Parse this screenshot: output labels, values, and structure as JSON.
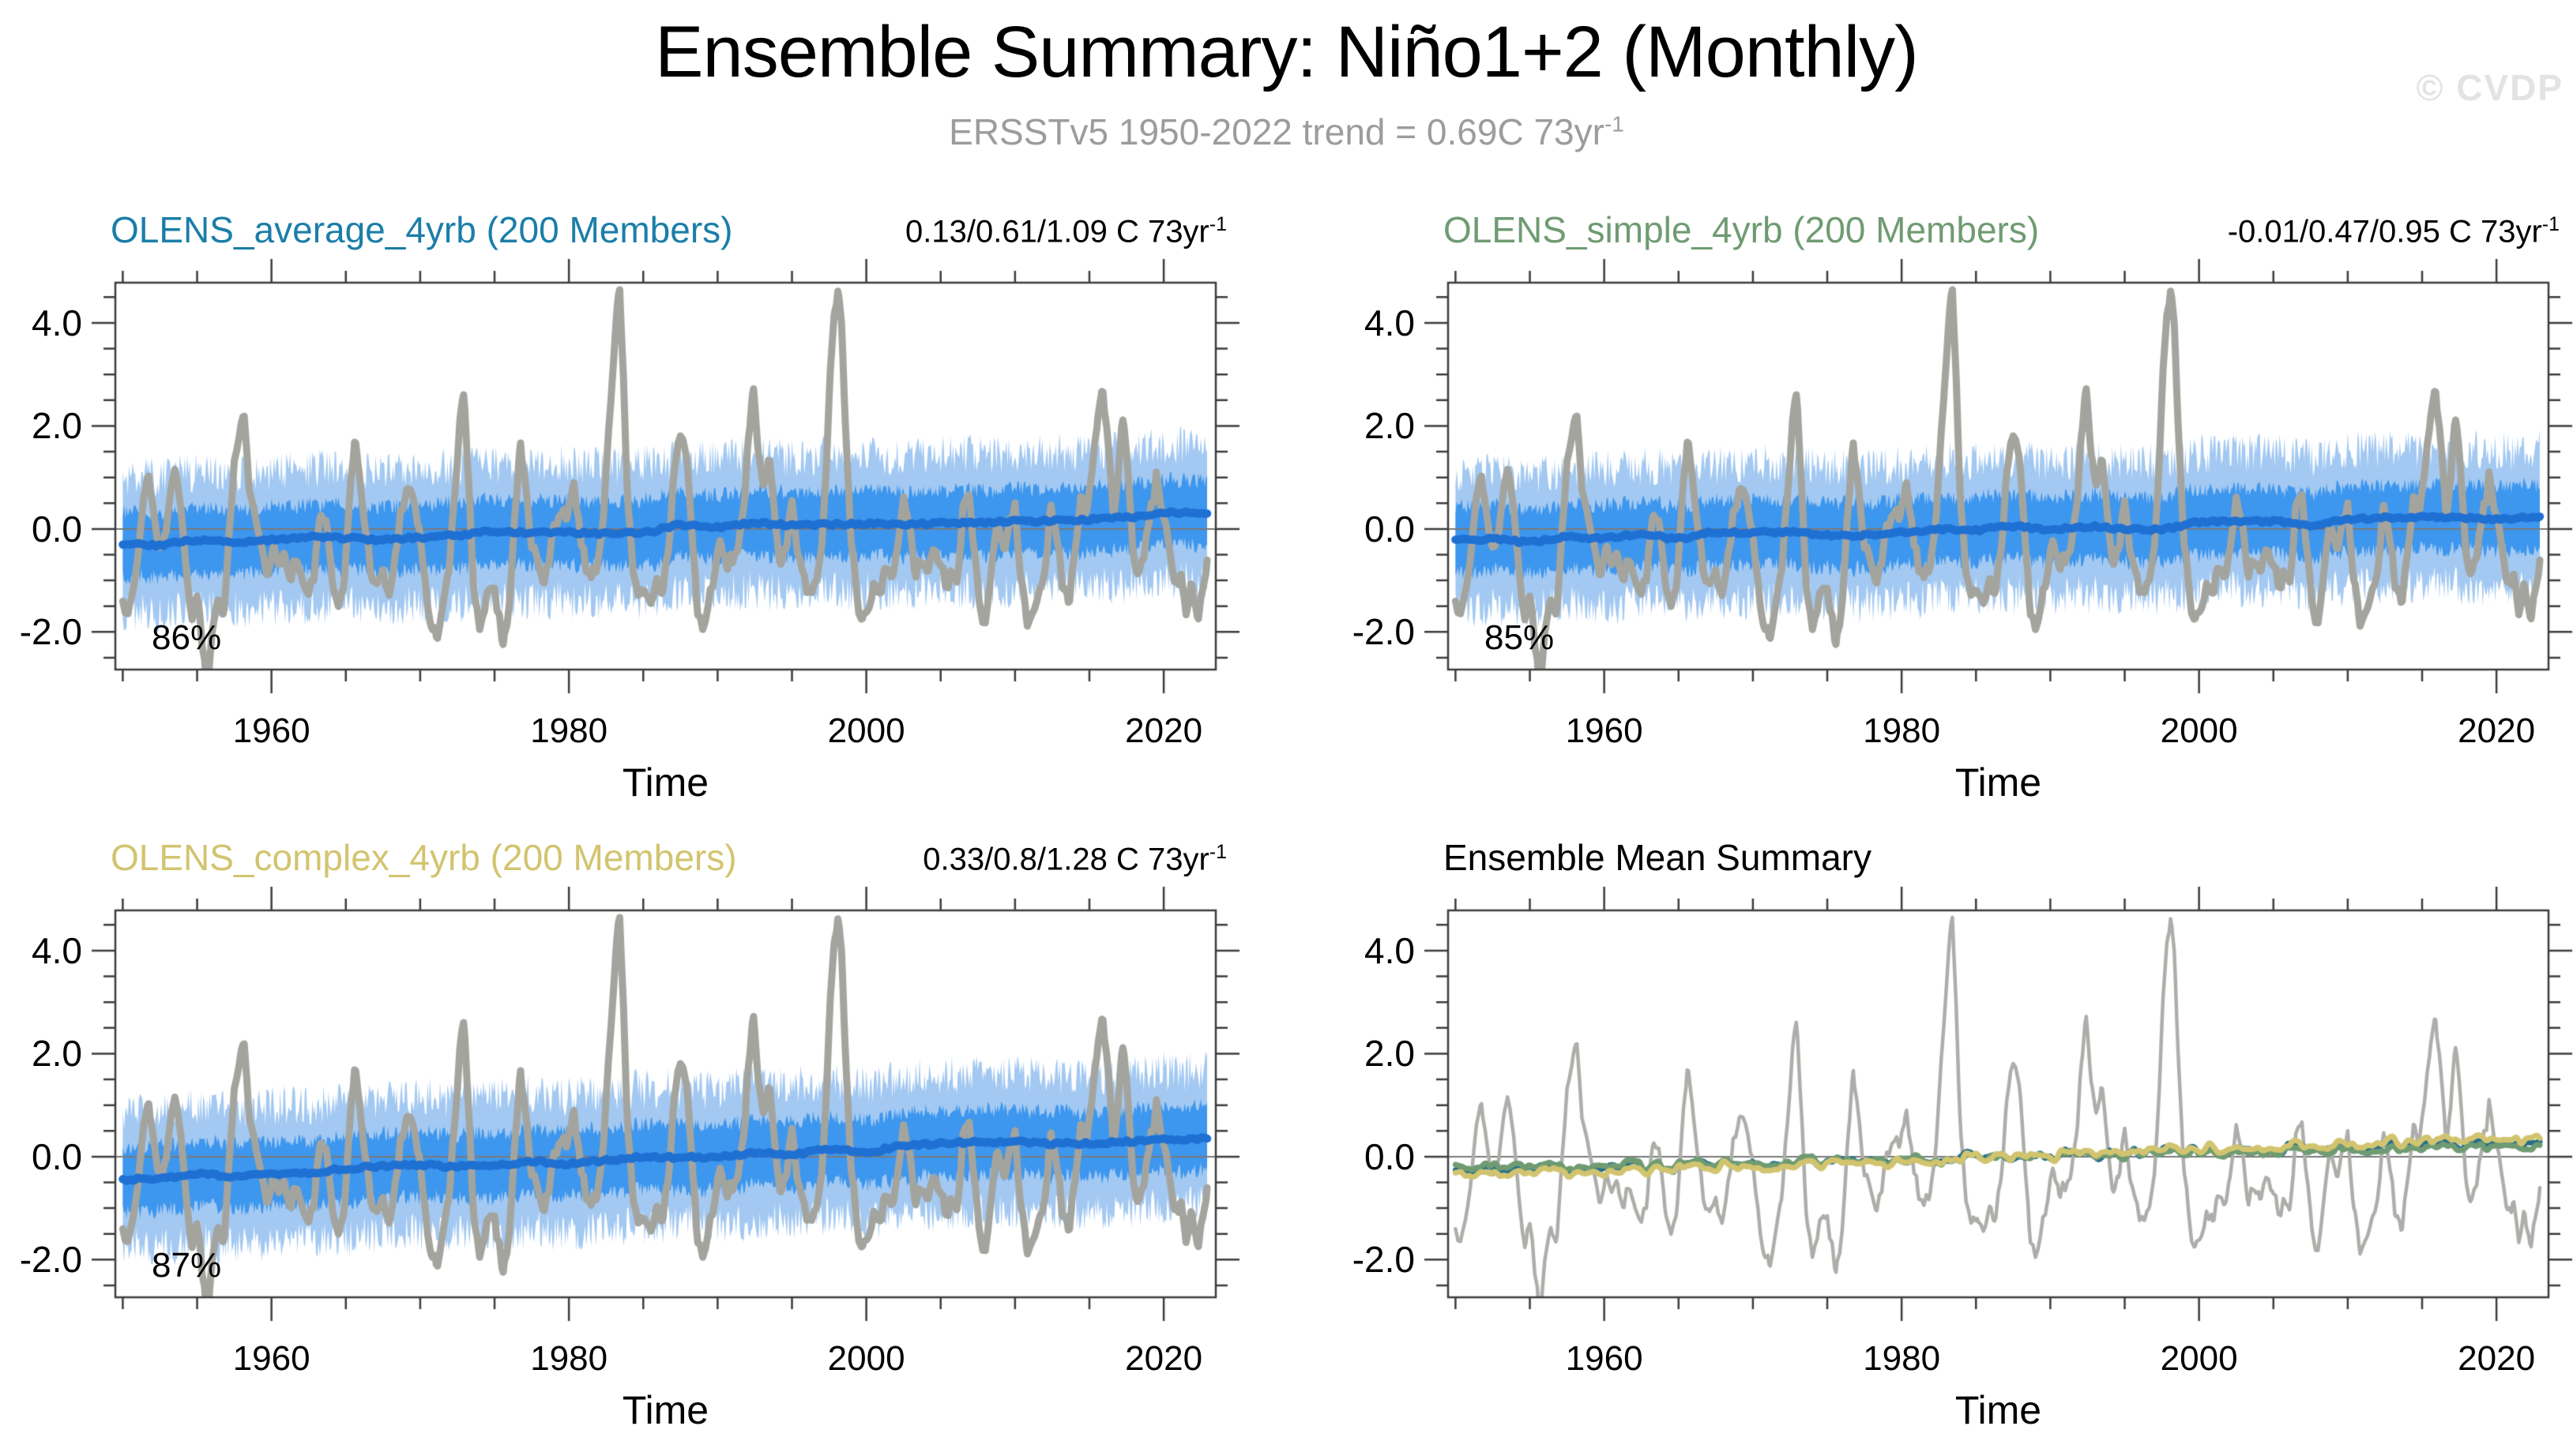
{
  "header": {
    "title": "Ensemble Summary: Niño1+2 (Monthly)",
    "subtitle": "ERSSTv5 1950-2022 trend = 0.69C 73yr",
    "subtitle_sup": "-1",
    "watermark": "© CVDP"
  },
  "chart_data": {
    "type": "line",
    "xlabel": "Time",
    "x_range": [
      1949.5,
      2023.5
    ],
    "x_major_ticks": [
      1960,
      1980,
      2000,
      2020
    ],
    "x_major_labels": [
      "1960",
      "1980",
      "2000",
      "2020"
    ],
    "x_minor_ticks": [
      1950,
      1955,
      1965,
      1970,
      1975,
      1985,
      1990,
      1995,
      2005,
      2010,
      2015
    ],
    "y_range": [
      -2.73,
      4.78
    ],
    "y_major_ticks": [
      -2,
      0,
      2,
      4
    ],
    "y_major_labels": [
      "-2.0",
      "0.0",
      "2.0",
      "4.0"
    ],
    "y_minor_step": 0.5,
    "colors": {
      "band_outer": "#a3c9f2",
      "band_inner": "#3e97ee",
      "ensemble_mean": "#1f70d3",
      "obs": "#a4a49f",
      "obs_summary": "#adadaa",
      "zero_line": "#7a7a7a",
      "frame": "#3c3c3c"
    },
    "panels": [
      {
        "id": "olens-average",
        "kind": "band",
        "title": "OLENS_average_4yrb (200 Members)",
        "title_color": "#1b7ea8",
        "trend_label": "0.13/0.61/1.09 C 73yr",
        "trend_sup": "-1",
        "percent_label": "86%",
        "mean_start": -0.31,
        "mean_end": 0.3
      },
      {
        "id": "olens-simple",
        "kind": "band",
        "title": "OLENS_simple_4yrb (200 Members)",
        "title_color": "#6f9b72",
        "trend_label": "-0.01/0.47/0.95 C 73yr",
        "trend_sup": "-1",
        "percent_label": "85%",
        "mean_start": -0.25,
        "mean_end": 0.22
      },
      {
        "id": "olens-complex",
        "kind": "band",
        "title": "OLENS_complex_4yrb (200 Members)",
        "title_color": "#d2c46f",
        "trend_label": "0.33/0.8/1.28 C 73yr",
        "trend_sup": "-1",
        "percent_label": "87%",
        "mean_start": -0.41,
        "mean_end": 0.39
      },
      {
        "id": "summary",
        "kind": "lines",
        "title": "Ensemble Mean Summary",
        "title_color": "#000000",
        "series": [
          {
            "name": "OLENS_average_4yrb",
            "color": "#266f8c",
            "start": -0.31,
            "end": 0.3
          },
          {
            "name": "OLENS_simple_4yrb",
            "color": "#6f9b72",
            "start": -0.25,
            "end": 0.22
          },
          {
            "name": "OLENS_complex_4yrb",
            "color": "#d2c46f",
            "start": -0.41,
            "end": 0.39
          }
        ]
      }
    ],
    "observations": {
      "name": "ERSSTv5",
      "monthly_span": [
        1950.0,
        2022.92
      ],
      "keypoints": [
        [
          1950.0,
          -1.3
        ],
        [
          1950.33,
          -1.75
        ],
        [
          1950.67,
          -1.2
        ],
        [
          1951.0,
          -0.6
        ],
        [
          1951.4,
          0.6
        ],
        [
          1951.75,
          1.05
        ],
        [
          1952.1,
          0.3
        ],
        [
          1952.5,
          -0.45
        ],
        [
          1952.9,
          -0.2
        ],
        [
          1953.2,
          0.85
        ],
        [
          1953.5,
          1.25
        ],
        [
          1953.9,
          0.5
        ],
        [
          1954.3,
          -1.0
        ],
        [
          1954.7,
          -1.7
        ],
        [
          1955.0,
          -1.2
        ],
        [
          1955.3,
          -2.1
        ],
        [
          1955.7,
          -3.15
        ],
        [
          1956.0,
          -2.0
        ],
        [
          1956.4,
          -1.25
        ],
        [
          1956.8,
          -1.6
        ],
        [
          1957.1,
          -0.3
        ],
        [
          1957.5,
          1.3
        ],
        [
          1957.9,
          1.9
        ],
        [
          1958.15,
          2.1
        ],
        [
          1958.5,
          0.9
        ],
        [
          1958.9,
          0.35
        ],
        [
          1959.3,
          -0.2
        ],
        [
          1959.7,
          -0.85
        ],
        [
          1960.1,
          -0.35
        ],
        [
          1960.5,
          -0.7
        ],
        [
          1960.9,
          -0.45
        ],
        [
          1961.3,
          -0.95
        ],
        [
          1961.7,
          -0.5
        ],
        [
          1962.1,
          -1.05
        ],
        [
          1962.5,
          -1.35
        ],
        [
          1962.9,
          -0.8
        ],
        [
          1963.3,
          0.35
        ],
        [
          1963.7,
          0.05
        ],
        [
          1964.1,
          -1.15
        ],
        [
          1964.5,
          -1.5
        ],
        [
          1964.9,
          -0.9
        ],
        [
          1965.3,
          0.7
        ],
        [
          1965.6,
          1.75
        ],
        [
          1965.9,
          1.2
        ],
        [
          1966.3,
          -0.1
        ],
        [
          1966.7,
          -0.75
        ],
        [
          1967.1,
          -1.1
        ],
        [
          1967.5,
          -0.85
        ],
        [
          1967.9,
          -1.35
        ],
        [
          1968.3,
          -0.6
        ],
        [
          1968.7,
          0.35
        ],
        [
          1969.1,
          0.85
        ],
        [
          1969.5,
          0.6
        ],
        [
          1969.9,
          0.1
        ],
        [
          1970.3,
          -1.0
        ],
        [
          1970.7,
          -1.85
        ],
        [
          1971.1,
          -2.1
        ],
        [
          1971.5,
          -1.5
        ],
        [
          1971.9,
          -0.95
        ],
        [
          1972.3,
          0.6
        ],
        [
          1972.7,
          2.1
        ],
        [
          1972.95,
          2.65
        ],
        [
          1973.2,
          1.3
        ],
        [
          1973.6,
          -1.1
        ],
        [
          1974.0,
          -2.0
        ],
        [
          1974.4,
          -1.35
        ],
        [
          1974.8,
          -1.0
        ],
        [
          1975.2,
          -1.5
        ],
        [
          1975.6,
          -2.3
        ],
        [
          1976.0,
          -1.35
        ],
        [
          1976.4,
          0.4
        ],
        [
          1976.75,
          1.65
        ],
        [
          1977.1,
          0.7
        ],
        [
          1977.5,
          -0.25
        ],
        [
          1977.9,
          -0.7
        ],
        [
          1978.3,
          -1.1
        ],
        [
          1978.7,
          -0.5
        ],
        [
          1979.1,
          0.1
        ],
        [
          1979.5,
          0.45
        ],
        [
          1979.9,
          0.3
        ],
        [
          1980.3,
          0.8
        ],
        [
          1980.7,
          0.1
        ],
        [
          1981.1,
          -0.7
        ],
        [
          1981.5,
          -0.9
        ],
        [
          1981.9,
          -0.65
        ],
        [
          1982.3,
          0.2
        ],
        [
          1982.7,
          1.9
        ],
        [
          1982.95,
          3.1
        ],
        [
          1983.2,
          4.2
        ],
        [
          1983.42,
          4.6
        ],
        [
          1983.7,
          2.6
        ],
        [
          1983.95,
          0.6
        ],
        [
          1984.3,
          -0.75
        ],
        [
          1984.7,
          -1.35
        ],
        [
          1985.1,
          -1.15
        ],
        [
          1985.5,
          -1.6
        ],
        [
          1985.9,
          -1.05
        ],
        [
          1986.3,
          -1.2
        ],
        [
          1986.7,
          -0.4
        ],
        [
          1987.1,
          1.1
        ],
        [
          1987.5,
          1.95
        ],
        [
          1987.9,
          1.35
        ],
        [
          1988.2,
          0.3
        ],
        [
          1988.6,
          -1.5
        ],
        [
          1989.0,
          -2.0
        ],
        [
          1989.4,
          -1.45
        ],
        [
          1989.8,
          -0.75
        ],
        [
          1990.2,
          -0.35
        ],
        [
          1990.6,
          -0.8
        ],
        [
          1991.0,
          -0.55
        ],
        [
          1991.4,
          -0.25
        ],
        [
          1991.8,
          0.5
        ],
        [
          1992.1,
          1.8
        ],
        [
          1992.4,
          2.7
        ],
        [
          1992.75,
          1.5
        ],
        [
          1993.1,
          0.95
        ],
        [
          1993.45,
          1.45
        ],
        [
          1993.8,
          0.4
        ],
        [
          1994.2,
          -0.65
        ],
        [
          1994.6,
          -0.35
        ],
        [
          1995.0,
          0.5
        ],
        [
          1995.4,
          -0.4
        ],
        [
          1995.8,
          -1.0
        ],
        [
          1996.2,
          -1.35
        ],
        [
          1996.6,
          -0.95
        ],
        [
          1997.0,
          -0.45
        ],
        [
          1997.3,
          1.2
        ],
        [
          1997.6,
          3.2
        ],
        [
          1997.85,
          4.1
        ],
        [
          1998.08,
          4.65
        ],
        [
          1998.35,
          4.0
        ],
        [
          1998.6,
          2.0
        ],
        [
          1998.9,
          0.1
        ],
        [
          1999.3,
          -1.2
        ],
        [
          1999.7,
          -1.85
        ],
        [
          2000.1,
          -1.5
        ],
        [
          2000.5,
          -1.05
        ],
        [
          2000.9,
          -1.25
        ],
        [
          2001.3,
          -0.6
        ],
        [
          2001.7,
          -0.95
        ],
        [
          2002.1,
          -0.5
        ],
        [
          2002.5,
          0.5
        ],
        [
          2002.9,
          0.15
        ],
        [
          2003.3,
          -0.85
        ],
        [
          2003.7,
          -0.6
        ],
        [
          2004.1,
          -0.85
        ],
        [
          2004.5,
          -0.25
        ],
        [
          2004.9,
          -0.55
        ],
        [
          2005.3,
          -1.1
        ],
        [
          2005.7,
          -0.95
        ],
        [
          2006.1,
          -1.05
        ],
        [
          2006.5,
          0.3
        ],
        [
          2006.9,
          0.85
        ],
        [
          2007.2,
          -0.2
        ],
        [
          2007.6,
          -1.5
        ],
        [
          2008.0,
          -1.9
        ],
        [
          2008.4,
          -0.8
        ],
        [
          2008.8,
          0.25
        ],
        [
          2009.2,
          -0.45
        ],
        [
          2009.6,
          0.1
        ],
        [
          2010.0,
          0.55
        ],
        [
          2010.4,
          -1.0
        ],
        [
          2010.8,
          -1.85
        ],
        [
          2011.2,
          -1.6
        ],
        [
          2011.6,
          -1.15
        ],
        [
          2012.0,
          -0.9
        ],
        [
          2012.4,
          0.5
        ],
        [
          2012.8,
          -0.15
        ],
        [
          2013.2,
          -1.05
        ],
        [
          2013.6,
          -1.4
        ],
        [
          2014.0,
          -0.65
        ],
        [
          2014.4,
          0.7
        ],
        [
          2014.8,
          0.25
        ],
        [
          2015.2,
          1.1
        ],
        [
          2015.6,
          2.3
        ],
        [
          2015.9,
          2.8
        ],
        [
          2016.2,
          1.8
        ],
        [
          2016.6,
          0.3
        ],
        [
          2016.95,
          0.9
        ],
        [
          2017.2,
          2.3
        ],
        [
          2017.5,
          1.5
        ],
        [
          2017.9,
          -0.35
        ],
        [
          2018.3,
          -0.95
        ],
        [
          2018.7,
          -0.5
        ],
        [
          2019.1,
          0.25
        ],
        [
          2019.5,
          0.95
        ],
        [
          2019.9,
          0.45
        ],
        [
          2020.3,
          -0.35
        ],
        [
          2020.7,
          -1.15
        ],
        [
          2021.1,
          -0.9
        ],
        [
          2021.5,
          -1.55
        ],
        [
          2021.9,
          -1.05
        ],
        [
          2022.3,
          -1.65
        ],
        [
          2022.6,
          -1.2
        ],
        [
          2022.92,
          -0.6
        ]
      ]
    },
    "render": {
      "seed": 1337,
      "n_months": 876,
      "obs_noise_amp": 0.16,
      "obs_noise_step": 2,
      "mean_wiggle_amp": 0.07,
      "mean_wiggle_step": 30,
      "mean_fast_amp": 0.03,
      "inner_half": 0.63,
      "inner_jitter": 0.15,
      "outer_half": 1.32,
      "outer_jitter": 0.38,
      "shared_amp": 0.09,
      "shared_step": 7,
      "own_amp": 0.05,
      "own_step": 4,
      "obs_lw": 9,
      "mean_lw": 10.5,
      "summary_obs_lw": 4.5,
      "summary_lw": 7
    }
  }
}
